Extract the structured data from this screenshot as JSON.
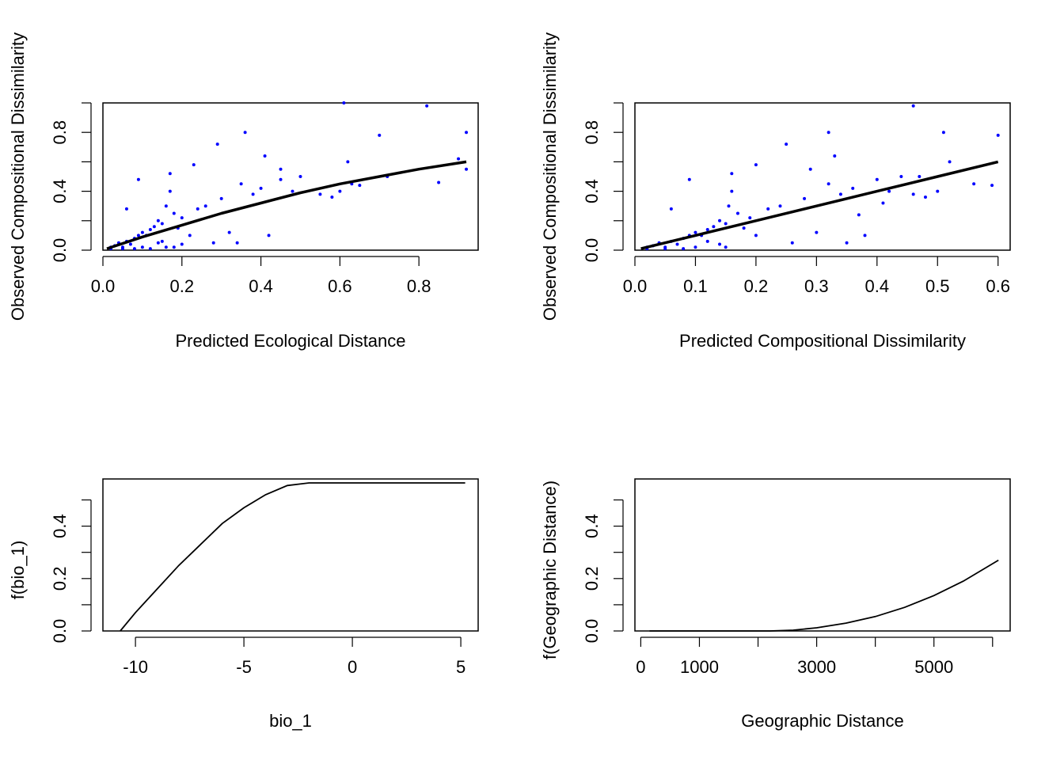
{
  "chart_data": [
    {
      "type": "scatter",
      "title": "",
      "xlabel": "Predicted Ecological Distance",
      "ylabel": "Observed Compositional Dissimilarity",
      "xlim": [
        0.0,
        0.95
      ],
      "ylim": [
        0.0,
        1.0
      ],
      "xticks": [
        0.0,
        0.2,
        0.4,
        0.6,
        0.8
      ],
      "xtick_labels": [
        "0.0",
        "0.2",
        "0.4",
        "0.6",
        "0.8"
      ],
      "yticks": [
        0.0,
        0.2,
        0.4,
        0.6,
        0.8,
        1.0
      ],
      "ytick_labels": [
        "0.0",
        "",
        "0.4",
        "",
        "0.8",
        ""
      ],
      "point_color": "#0000ff",
      "fit_color": "#000000",
      "fit_curve": {
        "x": [
          0.01,
          0.1,
          0.2,
          0.3,
          0.4,
          0.5,
          0.6,
          0.7,
          0.8,
          0.92
        ],
        "y": [
          0.01,
          0.09,
          0.17,
          0.25,
          0.32,
          0.39,
          0.45,
          0.5,
          0.55,
          0.6
        ]
      },
      "points": {
        "x": [
          0.02,
          0.03,
          0.04,
          0.05,
          0.06,
          0.07,
          0.08,
          0.09,
          0.1,
          0.11,
          0.12,
          0.13,
          0.14,
          0.15,
          0.16,
          0.17,
          0.18,
          0.19,
          0.2,
          0.22,
          0.24,
          0.26,
          0.28,
          0.3,
          0.32,
          0.35,
          0.38,
          0.4,
          0.42,
          0.45,
          0.48,
          0.5,
          0.55,
          0.58,
          0.6,
          0.62,
          0.63,
          0.65,
          0.7,
          0.72,
          0.82,
          0.85,
          0.9,
          0.92,
          0.02,
          0.05,
          0.08,
          0.12,
          0.16,
          0.18,
          0.1,
          0.15,
          0.17,
          0.29,
          0.36,
          0.41,
          0.45,
          0.61,
          0.92,
          0.14,
          0.06,
          0.09,
          0.2,
          0.34,
          0.23
        ],
        "y": [
          0.02,
          0.03,
          0.05,
          0.02,
          0.06,
          0.04,
          0.08,
          0.1,
          0.12,
          0.1,
          0.14,
          0.16,
          0.2,
          0.18,
          0.3,
          0.4,
          0.25,
          0.15,
          0.22,
          0.1,
          0.28,
          0.3,
          0.05,
          0.35,
          0.12,
          0.45,
          0.38,
          0.42,
          0.1,
          0.48,
          0.4,
          0.5,
          0.38,
          0.36,
          0.4,
          0.6,
          0.45,
          0.44,
          0.78,
          0.5,
          0.98,
          0.46,
          0.62,
          0.8,
          0.01,
          0.01,
          0.01,
          0.01,
          0.02,
          0.02,
          0.02,
          0.06,
          0.52,
          0.72,
          0.8,
          0.64,
          0.55,
          1.0,
          0.55,
          0.05,
          0.28,
          0.48,
          0.04,
          0.05,
          0.58
        ]
      }
    },
    {
      "type": "scatter",
      "title": "",
      "xlabel": "Predicted Compositional Dissimilarity",
      "ylabel": "Observed Compositional Dissimilarity",
      "xlim": [
        0.0,
        0.62
      ],
      "ylim": [
        0.0,
        1.0
      ],
      "xticks": [
        0.0,
        0.1,
        0.2,
        0.3,
        0.4,
        0.5,
        0.6
      ],
      "xtick_labels": [
        "0.0",
        "0.1",
        "0.2",
        "0.3",
        "0.4",
        "0.5",
        "0.6"
      ],
      "yticks": [
        0.0,
        0.2,
        0.4,
        0.6,
        0.8,
        1.0
      ],
      "ytick_labels": [
        "0.0",
        "",
        "0.4",
        "",
        "0.8",
        ""
      ],
      "point_color": "#0000ff",
      "fit_color": "#000000",
      "fit_curve": {
        "x": [
          0.01,
          0.1,
          0.2,
          0.3,
          0.4,
          0.5,
          0.6
        ],
        "y": [
          0.01,
          0.1,
          0.2,
          0.3,
          0.4,
          0.5,
          0.6
        ]
      },
      "points": {
        "x": [
          0.02,
          0.03,
          0.04,
          0.05,
          0.06,
          0.07,
          0.08,
          0.09,
          0.1,
          0.11,
          0.12,
          0.13,
          0.14,
          0.15,
          0.155,
          0.16,
          0.17,
          0.18,
          0.19,
          0.2,
          0.22,
          0.24,
          0.26,
          0.28,
          0.3,
          0.32,
          0.34,
          0.36,
          0.38,
          0.4,
          0.42,
          0.44,
          0.46,
          0.48,
          0.5,
          0.52,
          0.56,
          0.59,
          0.6,
          0.02,
          0.05,
          0.08,
          0.1,
          0.15,
          0.12,
          0.16,
          0.25,
          0.32,
          0.33,
          0.46,
          0.51,
          0.06,
          0.09,
          0.2,
          0.35,
          0.14,
          0.29,
          0.41,
          0.47,
          0.37
        ],
        "y": [
          0.02,
          0.03,
          0.05,
          0.02,
          0.06,
          0.04,
          0.08,
          0.1,
          0.12,
          0.1,
          0.14,
          0.16,
          0.2,
          0.18,
          0.3,
          0.4,
          0.25,
          0.15,
          0.22,
          0.1,
          0.28,
          0.3,
          0.05,
          0.35,
          0.12,
          0.45,
          0.38,
          0.42,
          0.1,
          0.48,
          0.4,
          0.5,
          0.38,
          0.36,
          0.4,
          0.6,
          0.45,
          0.44,
          0.78,
          0.01,
          0.01,
          0.01,
          0.02,
          0.02,
          0.06,
          0.52,
          0.72,
          0.8,
          0.64,
          0.98,
          0.8,
          0.28,
          0.48,
          0.58,
          0.05,
          0.04,
          0.55,
          0.32,
          0.5,
          0.24
        ]
      }
    },
    {
      "type": "line",
      "title": "",
      "xlabel": "bio_1",
      "ylabel": "f(bio_1)",
      "xlim": [
        -11.5,
        5.8
      ],
      "ylim": [
        0.0,
        0.58
      ],
      "xticks": [
        -10,
        -5,
        0,
        5
      ],
      "xtick_labels": [
        "-10",
        "-5",
        "0",
        "5"
      ],
      "yticks": [
        0.0,
        0.1,
        0.2,
        0.3,
        0.4,
        0.5
      ],
      "ytick_labels": [
        "0.0",
        "",
        "0.2",
        "",
        "0.4",
        ""
      ],
      "line_color": "#000000",
      "series": [
        {
          "x": [
            -10.7,
            -10.0,
            -9.0,
            -8.0,
            -7.0,
            -6.0,
            -5.0,
            -4.0,
            -3.0,
            -2.0,
            0.0,
            2.0,
            4.0,
            5.2
          ],
          "y": [
            0.0,
            0.07,
            0.16,
            0.25,
            0.33,
            0.41,
            0.47,
            0.52,
            0.555,
            0.565,
            0.565,
            0.565,
            0.565,
            0.565
          ]
        }
      ]
    },
    {
      "type": "line",
      "title": "",
      "xlabel": "Geographic Distance",
      "ylabel": "f(Geographic Distance)",
      "xlim": [
        -100,
        6300
      ],
      "ylim": [
        0.0,
        0.58
      ],
      "xticks": [
        0,
        1000,
        2000,
        3000,
        4000,
        5000,
        6000
      ],
      "xtick_labels": [
        "0",
        "1000",
        "",
        "3000",
        "",
        "5000",
        ""
      ],
      "yticks": [
        0.0,
        0.1,
        0.2,
        0.3,
        0.4,
        0.5
      ],
      "ytick_labels": [
        "0.0",
        "",
        "0.2",
        "",
        "0.4",
        ""
      ],
      "line_color": "#000000",
      "series": [
        {
          "x": [
            150,
            1000,
            2000,
            2200,
            2600,
            3000,
            3500,
            4000,
            4500,
            5000,
            5500,
            6100
          ],
          "y": [
            0.0,
            0.0,
            0.0,
            0.0,
            0.003,
            0.012,
            0.03,
            0.055,
            0.09,
            0.135,
            0.19,
            0.27
          ]
        }
      ]
    }
  ]
}
